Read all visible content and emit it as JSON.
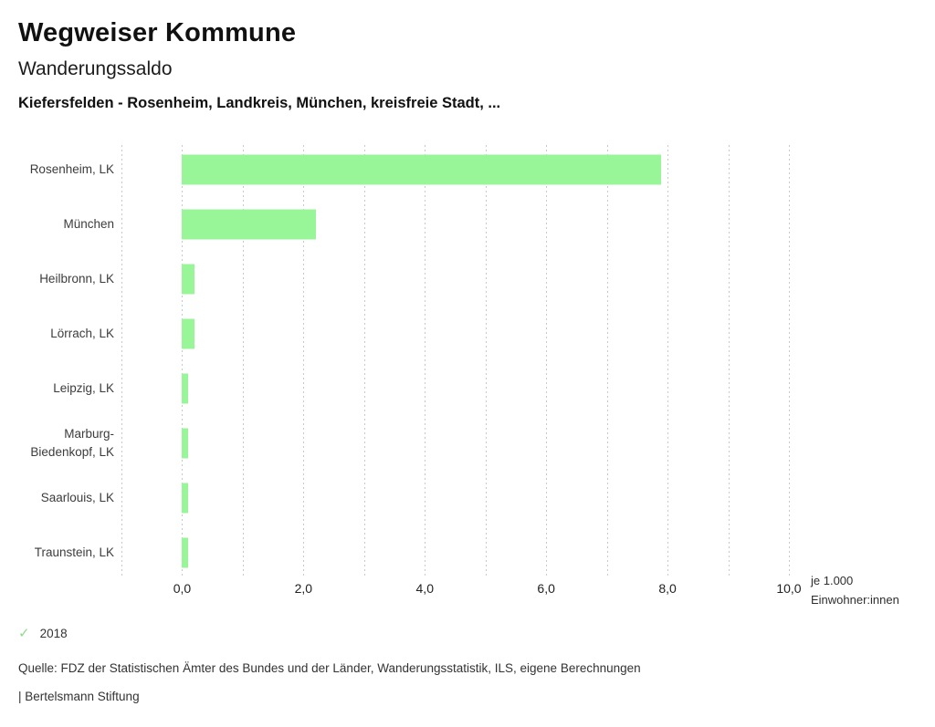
{
  "header": {
    "app_title": "Wegweiser Kommune",
    "indicator_title": "Wanderungssaldo",
    "comparison_subtitle": "Kiefersfelden - Rosenheim, Landkreis, München, kreisfreie Stadt, ..."
  },
  "chart_data": {
    "type": "bar",
    "orientation": "horizontal",
    "title": "Wanderungssaldo",
    "categories": [
      "Rosenheim, LK",
      "München",
      "Heilbronn, LK",
      "Lörrach, LK",
      "Leipzig, LK",
      "Marburg-Biedenkopf, LK",
      "Saarlouis, LK",
      "Traunstein, LK"
    ],
    "values": [
      7.9,
      2.2,
      0.2,
      0.2,
      0.1,
      0.1,
      0.1,
      0.1
    ],
    "year": "2018",
    "xlim": [
      -1,
      10
    ],
    "gridline_interval": 1,
    "grid": true,
    "x_tick_values": [
      0,
      2,
      4,
      6,
      8,
      10
    ],
    "x_tick_labels": [
      "0,0",
      "2,0",
      "4,0",
      "6,0",
      "8,0",
      "10,0"
    ],
    "unit_label_line1": "je 1.000",
    "unit_label_line2": "Einwohner:innen",
    "bar_color": "#98f598",
    "grid_color": "#c9c9c9"
  },
  "legend": {
    "year": "2018",
    "check_icon": "✓",
    "check_color": "#8fda8f"
  },
  "footer": {
    "source": "Quelle: FDZ der Statistischen Ämter des Bundes und der Länder, Wanderungsstatistik, ILS, eigene Berechnungen",
    "brand": "| Bertelsmann Stiftung"
  }
}
